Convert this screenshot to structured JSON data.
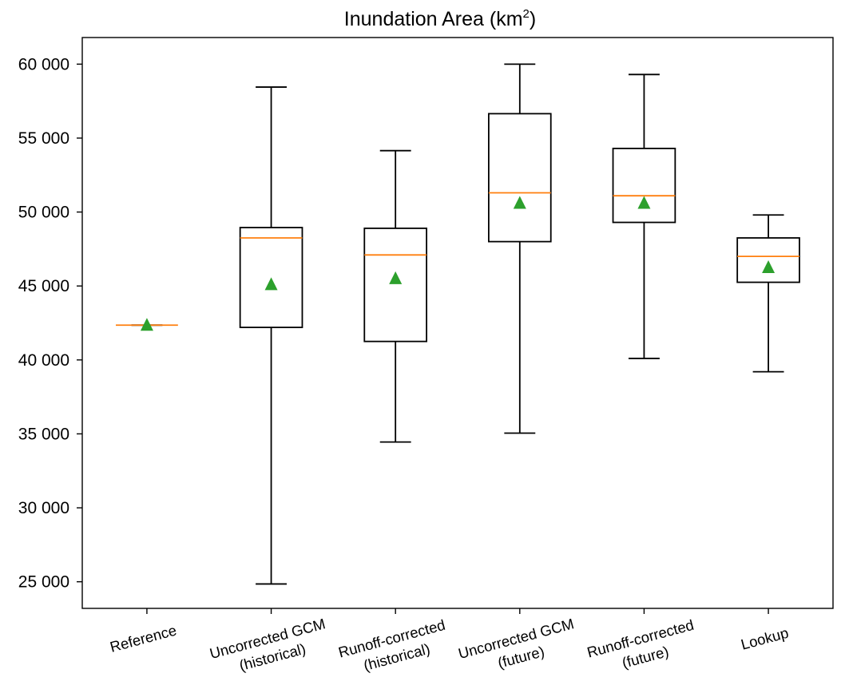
{
  "chart_data": {
    "type": "boxplot",
    "title": "Inundation Area (km²)",
    "title_main": "Inundation Area (km",
    "title_sup": "2",
    "title_close": ")",
    "xlabel": "",
    "ylabel": "",
    "ylim": [
      23200,
      61800
    ],
    "yticks": [
      25000,
      30000,
      35000,
      40000,
      45000,
      50000,
      55000,
      60000
    ],
    "ytick_labels": [
      "25 000",
      "30 000",
      "35 000",
      "40 000",
      "45 000",
      "50 000",
      "55 000",
      "60 000"
    ],
    "grid": false,
    "colors": {
      "box": "#000000",
      "median": "#ff7f0e",
      "mean": "#2ca02c"
    },
    "categories": [
      [
        "Reference"
      ],
      [
        "Uncorrected GCM",
        "(historical)"
      ],
      [
        "Runoff-corrected",
        "(historical)"
      ],
      [
        "Uncorrected GCM",
        "(future)"
      ],
      [
        "Runoff-corrected",
        "(future)"
      ],
      [
        "Lookup"
      ]
    ],
    "boxes": [
      {
        "whislo": 42350,
        "q1": 42350,
        "med": 42350,
        "q3": 42350,
        "whishi": 42350,
        "mean": 42350
      },
      {
        "whislo": 24850,
        "q1": 42200,
        "med": 48250,
        "q3": 48950,
        "whishi": 58450,
        "mean": 45100
      },
      {
        "whislo": 34450,
        "q1": 41250,
        "med": 47100,
        "q3": 48900,
        "whishi": 54150,
        "mean": 45500
      },
      {
        "whislo": 35050,
        "q1": 48000,
        "med": 51300,
        "q3": 56650,
        "whishi": 60000,
        "mean": 50600
      },
      {
        "whislo": 40100,
        "q1": 49300,
        "med": 51100,
        "q3": 54300,
        "whishi": 59300,
        "mean": 50600
      },
      {
        "whislo": 39200,
        "q1": 45250,
        "med": 47000,
        "q3": 48250,
        "whishi": 49800,
        "mean": 46250
      }
    ]
  }
}
